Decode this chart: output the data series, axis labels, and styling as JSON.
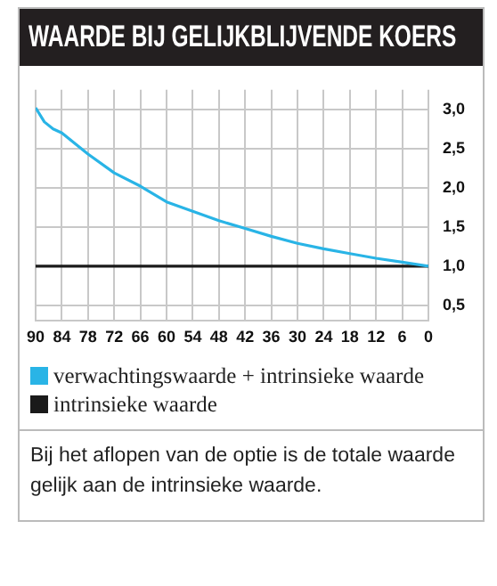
{
  "chart_data": {
    "type": "line",
    "title": "WAARDE BIJ GELIJKBLIJVENDE KOERS",
    "xlim": [
      90,
      0
    ],
    "xticks": [
      90,
      84,
      78,
      72,
      66,
      60,
      54,
      48,
      42,
      36,
      30,
      24,
      18,
      12,
      6,
      0
    ],
    "ylim": [
      0.3,
      3.25
    ],
    "yticks": [
      {
        "value": 3,
        "label": "3,0"
      },
      {
        "value": 2.5,
        "label": "2,5"
      },
      {
        "value": 2,
        "label": "2,0"
      },
      {
        "value": 1.5,
        "label": "1,5"
      },
      {
        "value": 1,
        "label": "1,0"
      },
      {
        "value": 0.5,
        "label": "0,5"
      }
    ],
    "grid": true,
    "legend": "bottom",
    "marker": "none",
    "line_style": "solid",
    "series": [
      {
        "name": "verwachtingswaarde + intrinsieke waarde",
        "color": "#29b4e6",
        "x": [
          90,
          88,
          86,
          84,
          78,
          72,
          66,
          60,
          54,
          48,
          42,
          36,
          30,
          24,
          18,
          12,
          6,
          0
        ],
        "values": [
          3.02,
          2.84,
          2.75,
          2.7,
          2.43,
          2.19,
          2.02,
          1.82,
          1.7,
          1.58,
          1.48,
          1.38,
          1.29,
          1.22,
          1.16,
          1.1,
          1.05,
          1.0
        ]
      },
      {
        "name": "intrinsieke waarde",
        "color": "#1a1a1a",
        "x": [
          90,
          0
        ],
        "values": [
          1,
          1
        ]
      }
    ],
    "annotations": [
      "Bij het aflopen van de optie is de totale waarde gelijk aan de intrinsieke waarde."
    ]
  }
}
